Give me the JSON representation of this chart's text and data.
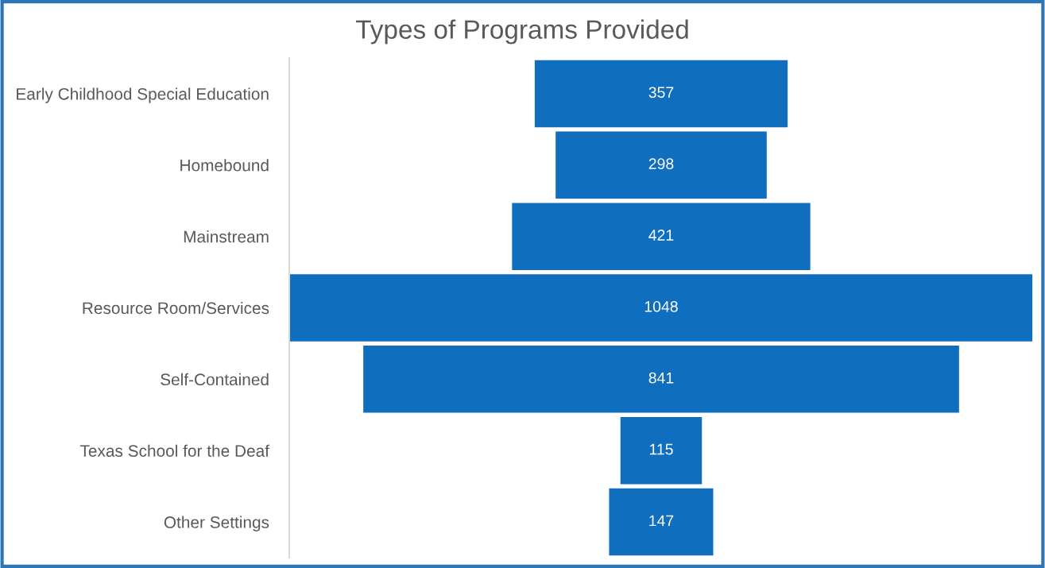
{
  "chart_data": {
    "type": "other",
    "title": "Types of Programs Provided",
    "categories": [
      "Early Childhood Special Education",
      "Homebound",
      "Mainstream",
      "Resource Room/Services",
      "Self-Contained",
      "Texas School for the Deaf",
      "Other Settings"
    ],
    "values": [
      357,
      298,
      421,
      1048,
      841,
      115,
      147
    ],
    "color": "#106ebe",
    "data_labels": true
  }
}
